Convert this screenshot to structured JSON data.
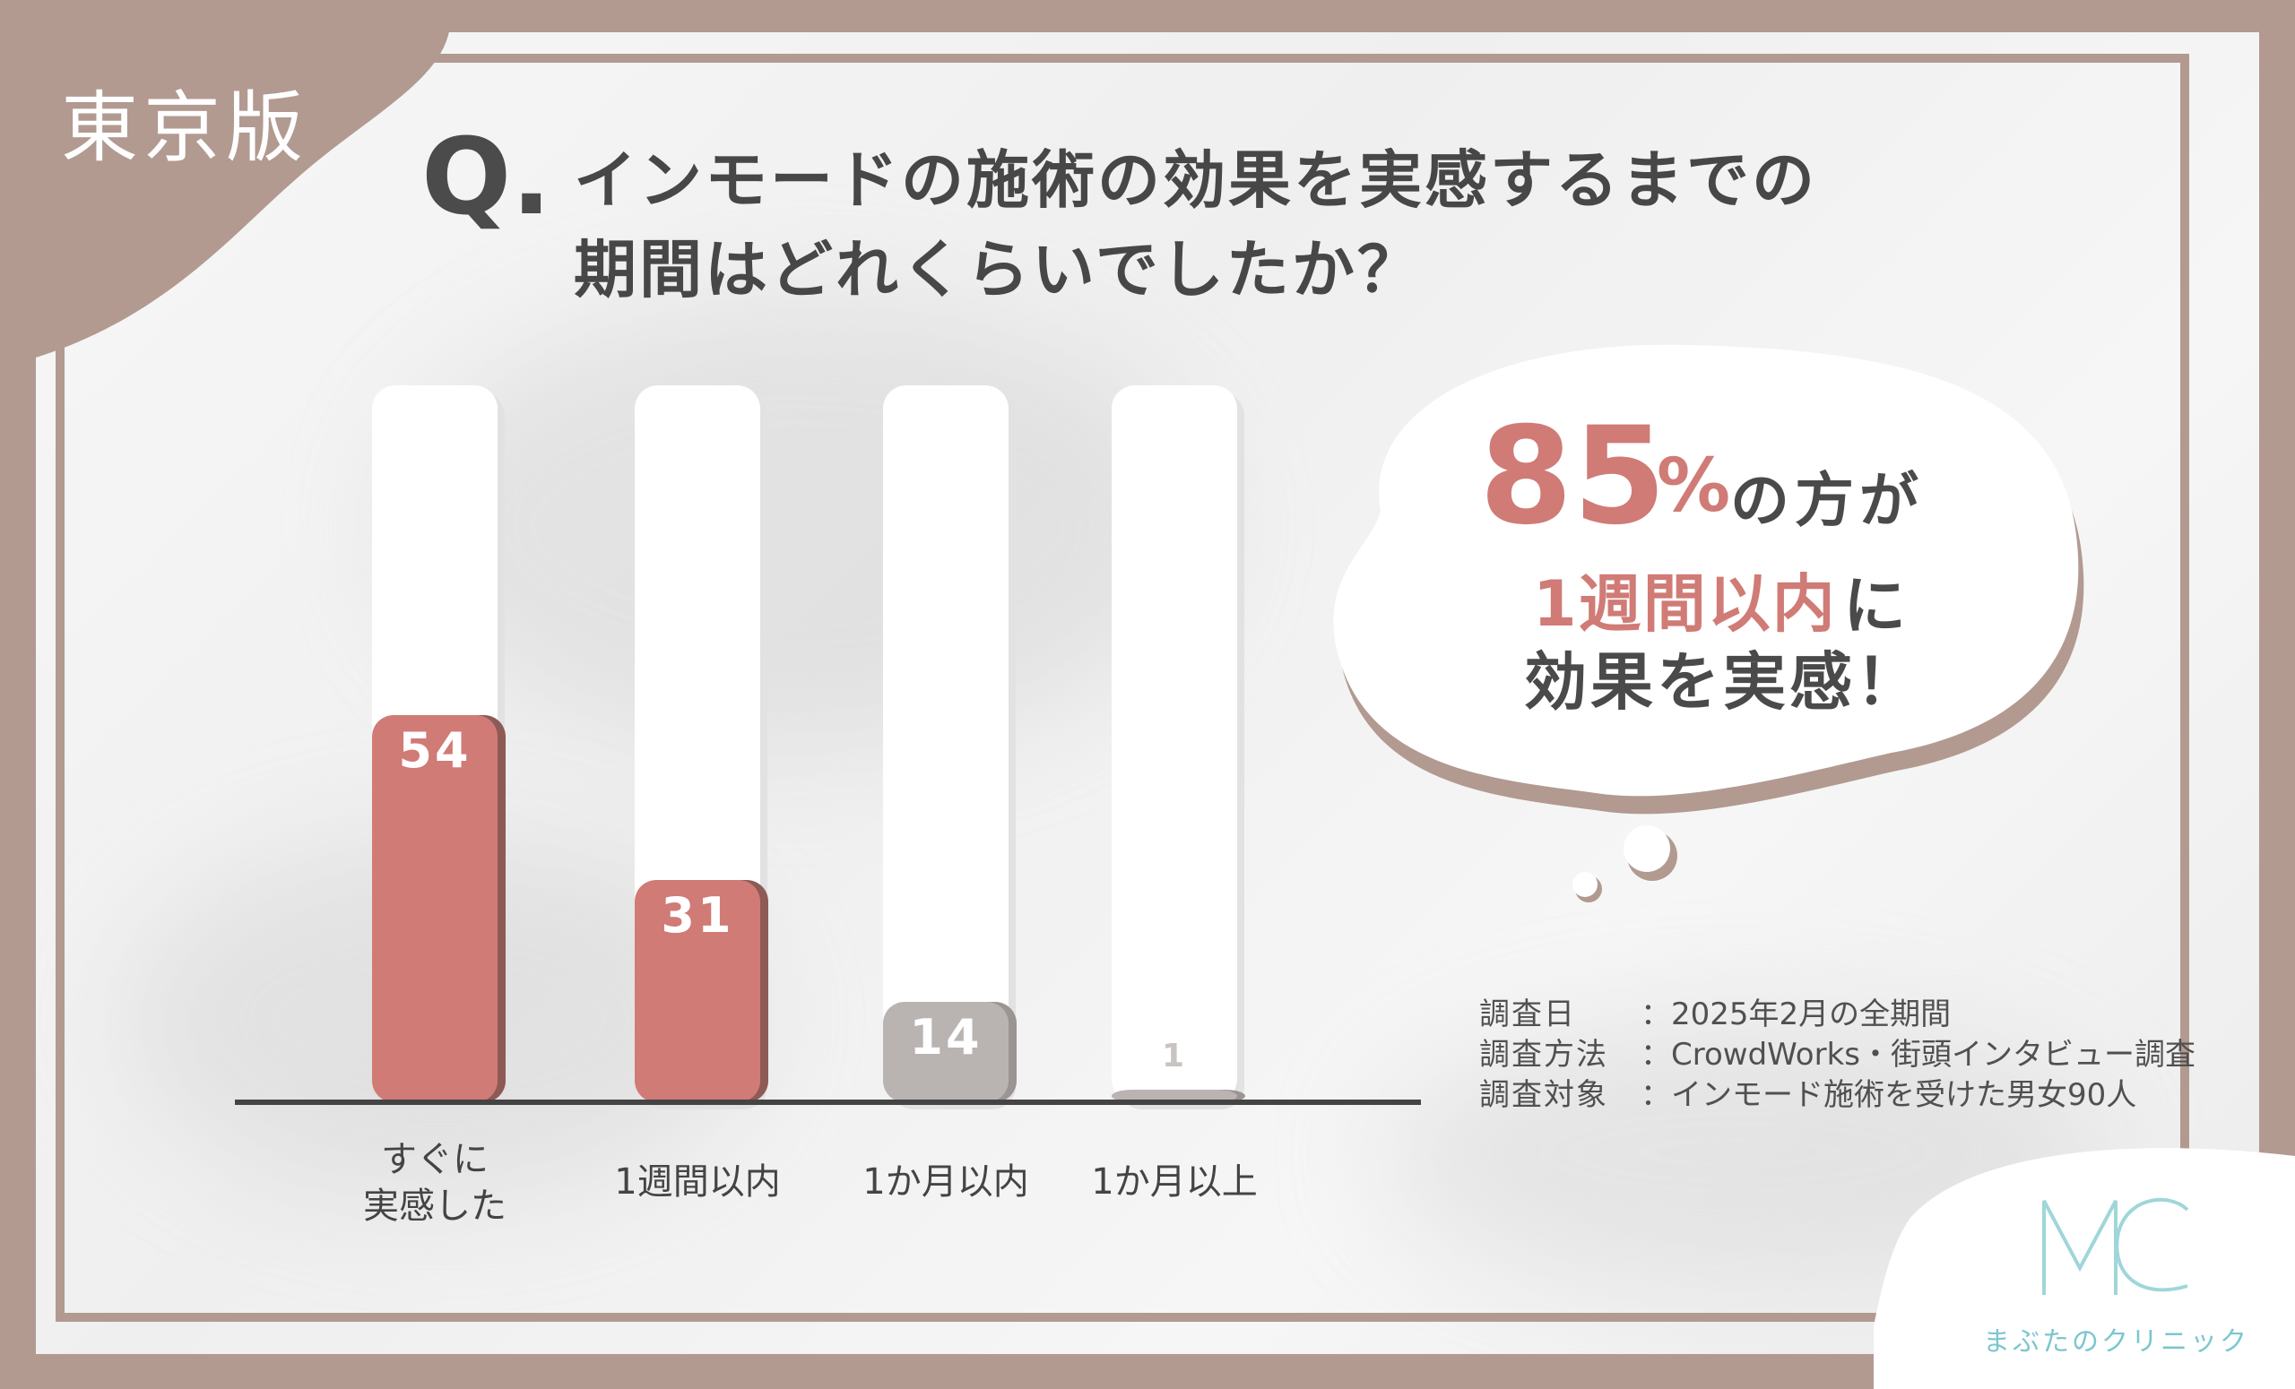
{
  "badge": {
    "label": "東京版"
  },
  "question": {
    "prefix": "Q.",
    "line1": "インモードの施術の効果を実感するまでの",
    "line2": "期間はどれくらいでしたか？"
  },
  "chart_data": {
    "type": "bar",
    "categories": [
      "すぐに実感した",
      "1週間以内",
      "1か月以内",
      "1か月以上"
    ],
    "category_lines": [
      [
        "すぐに",
        "実感した"
      ],
      [
        "1週間以内"
      ],
      [
        "1か月以内"
      ],
      [
        "1か月以上"
      ]
    ],
    "values": [
      54,
      31,
      14,
      1
    ],
    "data_labels": [
      "54",
      "31",
      "14",
      "1"
    ],
    "highlight_color": "#d07b76",
    "muted_color": "#b9b4b2",
    "highlighted": [
      true,
      true,
      false,
      false
    ],
    "ylim": [
      0,
      100
    ],
    "title": "",
    "xlabel": "",
    "ylabel": ""
  },
  "callout": {
    "percent": "85",
    "percent_sign": "%",
    "line1_suffix": "の方が",
    "line2_highlight": "1週間以内",
    "line2_suffix": "に",
    "line3": "効果を実感！"
  },
  "survey": [
    {
      "label": "調査日　",
      "value": "：2025年2月の全期間"
    },
    {
      "label": "調査方法",
      "value": "：CrowdWorks・街頭インタビュー調査"
    },
    {
      "label": "調査対象",
      "value": "：インモード施術を受けた男女90人"
    }
  ],
  "logo": {
    "mark": "MC",
    "name": "まぶたのクリニック",
    "color": "#9fd6d9"
  },
  "colors": {
    "frame": "#b29a91",
    "accent": "#d07b76",
    "text": "#474747"
  }
}
